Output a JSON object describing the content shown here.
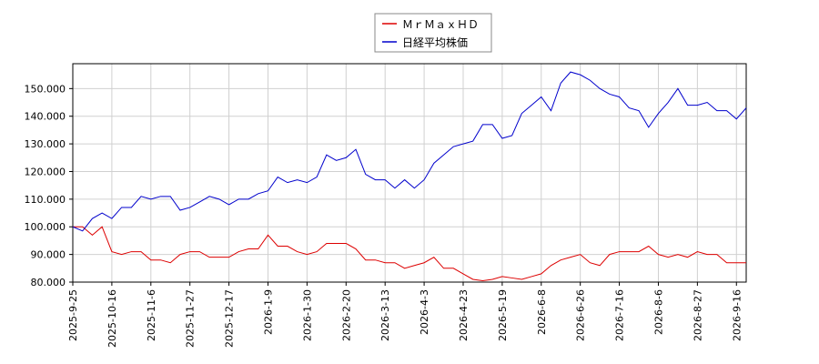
{
  "chart_data": {
    "type": "line",
    "categories": [
      "2025-9-25",
      null,
      null,
      null,
      "2025-10-16",
      null,
      null,
      null,
      "2025-11-6",
      null,
      null,
      null,
      "2025-11-27",
      null,
      null,
      null,
      "2025-12-17",
      null,
      null,
      null,
      "2026-1-9",
      null,
      null,
      null,
      "2026-1-30",
      null,
      null,
      null,
      "2026-2-20",
      null,
      null,
      null,
      "2026-3-13",
      null,
      null,
      null,
      "2026-4-3",
      null,
      null,
      null,
      "2026-4-23",
      null,
      null,
      null,
      "2026-5-19",
      null,
      null,
      null,
      "2026-6-8",
      null,
      null,
      null,
      "2026-6-26",
      null,
      null,
      null,
      "2026-7-16",
      null,
      null,
      null,
      "2026-8-6",
      null,
      null,
      null,
      "2026-8-27",
      null,
      null,
      null,
      "2026-9-16",
      null
    ],
    "series": [
      {
        "name": "ＭｒＭａｘＨＤ",
        "color": "#dd0000",
        "values": [
          100,
          100,
          97,
          100,
          91,
          90,
          91,
          91,
          88,
          88,
          87,
          90,
          91,
          91,
          89,
          89,
          89,
          91,
          92,
          92,
          97,
          93,
          93,
          91,
          90,
          91,
          94,
          94,
          94,
          92,
          88,
          88,
          87,
          87,
          85,
          86,
          87,
          89,
          85,
          85,
          83,
          81,
          80.5,
          81,
          82,
          81.5,
          81,
          82,
          83,
          86,
          88,
          89,
          90,
          87,
          86,
          90,
          91,
          91,
          91,
          93,
          90,
          89,
          90,
          89,
          91,
          90,
          90,
          87,
          87,
          87
        ]
      },
      {
        "name": "日経平均株価",
        "color": "#0000cc",
        "values": [
          100,
          98.5,
          103,
          105,
          103,
          107,
          107,
          111,
          110,
          111,
          111,
          106,
          107,
          109,
          111,
          110,
          108,
          110,
          110,
          112,
          113,
          118,
          116,
          117,
          116,
          118,
          126,
          124,
          125,
          128,
          119,
          117,
          117,
          114,
          117,
          114,
          117,
          123,
          126,
          129,
          130,
          131,
          137,
          137,
          132,
          133,
          141,
          144,
          147,
          142,
          152,
          156,
          155,
          153,
          150,
          148,
          147,
          143,
          142,
          136,
          141,
          145,
          150,
          144,
          144,
          145,
          142,
          142,
          139,
          143
        ]
      }
    ],
    "ylim": [
      80,
      159
    ],
    "yticks": [
      {
        "value": 80,
        "label": "80.000"
      },
      {
        "value": 90,
        "label": "90.000"
      },
      {
        "value": 100,
        "label": "100.000"
      },
      {
        "value": 110,
        "label": "110.000"
      },
      {
        "value": 120,
        "label": "120.000"
      },
      {
        "value": 130,
        "label": "130.000"
      },
      {
        "value": 140,
        "label": "140.000"
      },
      {
        "value": 150,
        "label": "150.000"
      }
    ],
    "grid": true,
    "legend": "top"
  }
}
